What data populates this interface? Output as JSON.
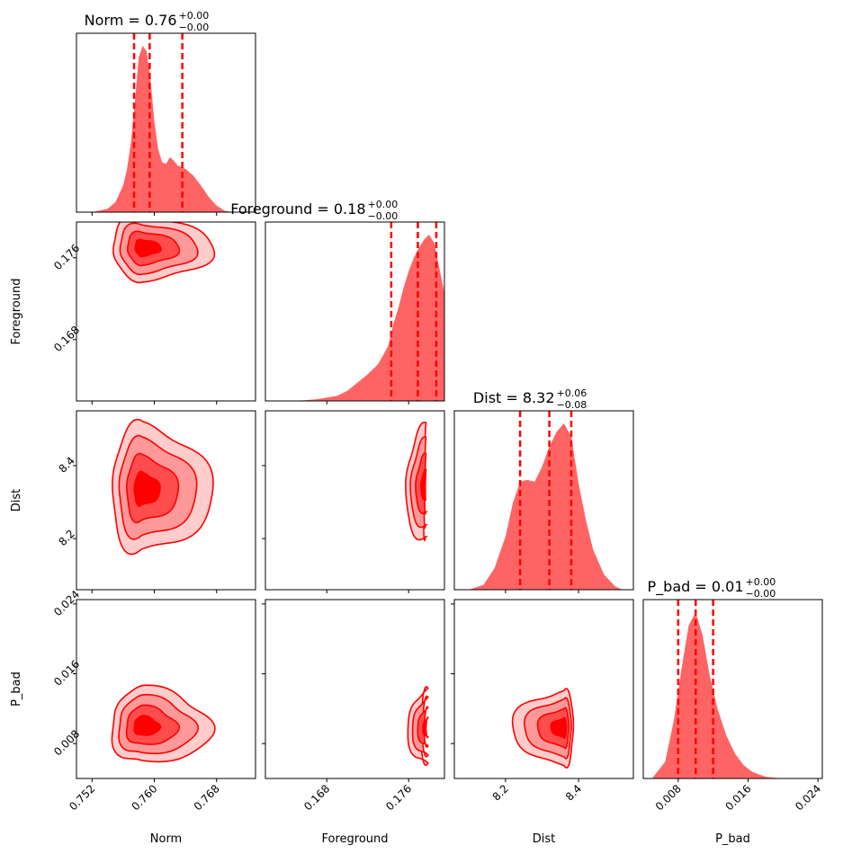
{
  "chart_data": {
    "type": "corner",
    "colors": {
      "fill": "#ff6464",
      "line": "#ff0000",
      "contour_fills": [
        "#ffcccc",
        "#ff9999",
        "#ff4d4d",
        "#ff0000"
      ],
      "axes": "#000000"
    },
    "params": [
      {
        "name": "Norm",
        "xlabel": "Norm",
        "ylabel": "",
        "range": [
          0.75,
          0.773
        ],
        "ticks": [
          0.752,
          0.76,
          0.768
        ],
        "tick_labels": [
          "0.752",
          "0.760",
          "0.768"
        ],
        "title_main": "Norm = 0.76",
        "title_plus": "+0.00",
        "title_minus": "−0.00",
        "quantiles": [
          0.7574,
          0.7594,
          0.7636
        ]
      },
      {
        "name": "Foreground",
        "xlabel": "Foreground",
        "ylabel": "Foreground",
        "range": [
          0.162,
          0.1795
        ],
        "ticks": [
          0.168,
          0.176
        ],
        "tick_labels": [
          "0.168",
          "0.176"
        ],
        "title_main": "Foreground = 0.18",
        "title_plus": "+0.00",
        "title_minus": "−0.00",
        "quantiles": [
          0.1743,
          0.1769,
          0.1787
        ]
      },
      {
        "name": "Dist",
        "xlabel": "Dist",
        "ylabel": "Dist",
        "range": [
          8.06,
          8.55
        ],
        "ticks": [
          8.2,
          8.4
        ],
        "tick_labels": [
          "8.2",
          "8.4"
        ],
        "title_main": "Dist = 8.32",
        "title_plus": "+0.06",
        "title_minus": "−0.08",
        "quantiles": [
          8.24,
          8.32,
          8.38
        ]
      },
      {
        "name": "P_bad",
        "xlabel": "P_bad",
        "ylabel": "P_bad",
        "range": [
          0.004,
          0.0245
        ],
        "ticks": [
          0.008,
          0.016,
          0.024
        ],
        "tick_labels": [
          "0.008",
          "0.016",
          "0.024"
        ],
        "title_main": "P_bad = 0.01",
        "title_plus": "+0.00",
        "title_minus": "−0.00",
        "quantiles": [
          0.008,
          0.01,
          0.012
        ]
      }
    ],
    "histograms": [
      {
        "x": [
          0.752,
          0.754,
          0.755,
          0.756,
          0.7565,
          0.757,
          0.7575,
          0.758,
          0.7585,
          0.759,
          0.7595,
          0.76,
          0.7605,
          0.761,
          0.7615,
          0.762,
          0.7625,
          0.763,
          0.764,
          0.765,
          0.766,
          0.767,
          0.768,
          0.769,
          0.77
        ],
        "density": [
          0.0,
          0.02,
          0.06,
          0.16,
          0.26,
          0.42,
          0.66,
          0.93,
          1.0,
          0.97,
          0.8,
          0.55,
          0.38,
          0.3,
          0.29,
          0.33,
          0.31,
          0.28,
          0.26,
          0.22,
          0.16,
          0.09,
          0.04,
          0.01,
          0.0
        ]
      },
      {
        "x": [
          0.165,
          0.167,
          0.169,
          0.17,
          0.171,
          0.172,
          0.173,
          0.174,
          0.1745,
          0.175,
          0.1755,
          0.176,
          0.1765,
          0.177,
          0.1775,
          0.178,
          0.1785,
          0.179,
          0.1795
        ],
        "density": [
          0.0,
          0.01,
          0.03,
          0.06,
          0.11,
          0.16,
          0.22,
          0.33,
          0.46,
          0.56,
          0.68,
          0.78,
          0.86,
          0.92,
          0.97,
          1.0,
          0.95,
          0.8,
          0.65
        ]
      },
      {
        "x": [
          8.1,
          8.14,
          8.17,
          8.2,
          8.22,
          8.24,
          8.26,
          8.28,
          8.3,
          8.32,
          8.34,
          8.36,
          8.38,
          8.4,
          8.42,
          8.44,
          8.47,
          8.5,
          8.52
        ],
        "density": [
          0.0,
          0.03,
          0.13,
          0.32,
          0.52,
          0.65,
          0.66,
          0.65,
          0.74,
          0.86,
          0.95,
          1.0,
          0.92,
          0.64,
          0.42,
          0.24,
          0.09,
          0.02,
          0.0
        ]
      },
      {
        "x": [
          0.005,
          0.0065,
          0.0075,
          0.0085,
          0.0092,
          0.01,
          0.0108,
          0.0116,
          0.0125,
          0.0135,
          0.0145,
          0.0155,
          0.0165,
          0.018,
          0.02
        ],
        "density": [
          0.0,
          0.1,
          0.35,
          0.7,
          0.92,
          1.0,
          0.86,
          0.62,
          0.42,
          0.26,
          0.15,
          0.08,
          0.04,
          0.01,
          0.0
        ]
      }
    ],
    "pairs": [
      {
        "row": 1,
        "col": 0,
        "center": [
          0.7585,
          0.177
        ],
        "shift": [
          0.009,
          -0.0006
        ],
        "sigma": [
          0.001,
          0.0008
        ]
      },
      {
        "row": 2,
        "col": 0,
        "center": [
          0.7584,
          8.335
        ],
        "shift": [
          0.009,
          0.0
        ],
        "sigma": [
          0.001,
          0.045
        ]
      },
      {
        "row": 2,
        "col": 1,
        "center": [
          0.1777,
          8.345
        ],
        "shift": [
          -0.004,
          -0.05
        ],
        "sigma": [
          0.0005,
          0.04
        ]
      },
      {
        "row": 3,
        "col": 0,
        "center": [
          0.7584,
          0.01
        ],
        "shift": [
          0.009,
          0.0
        ],
        "sigma": [
          0.001,
          0.0011
        ]
      },
      {
        "row": 3,
        "col": 1,
        "center": [
          0.1779,
          0.0098
        ],
        "shift": [
          -0.005,
          0.0003
        ],
        "sigma": [
          0.0005,
          0.0011
        ]
      },
      {
        "row": 3,
        "col": 2,
        "center": [
          8.36,
          0.0098
        ],
        "shift": [
          -0.2,
          0.0
        ],
        "sigma": [
          0.035,
          0.0011
        ]
      }
    ],
    "contour_levels": [
      1.0,
      2.0,
      3.0,
      3.9
    ]
  }
}
